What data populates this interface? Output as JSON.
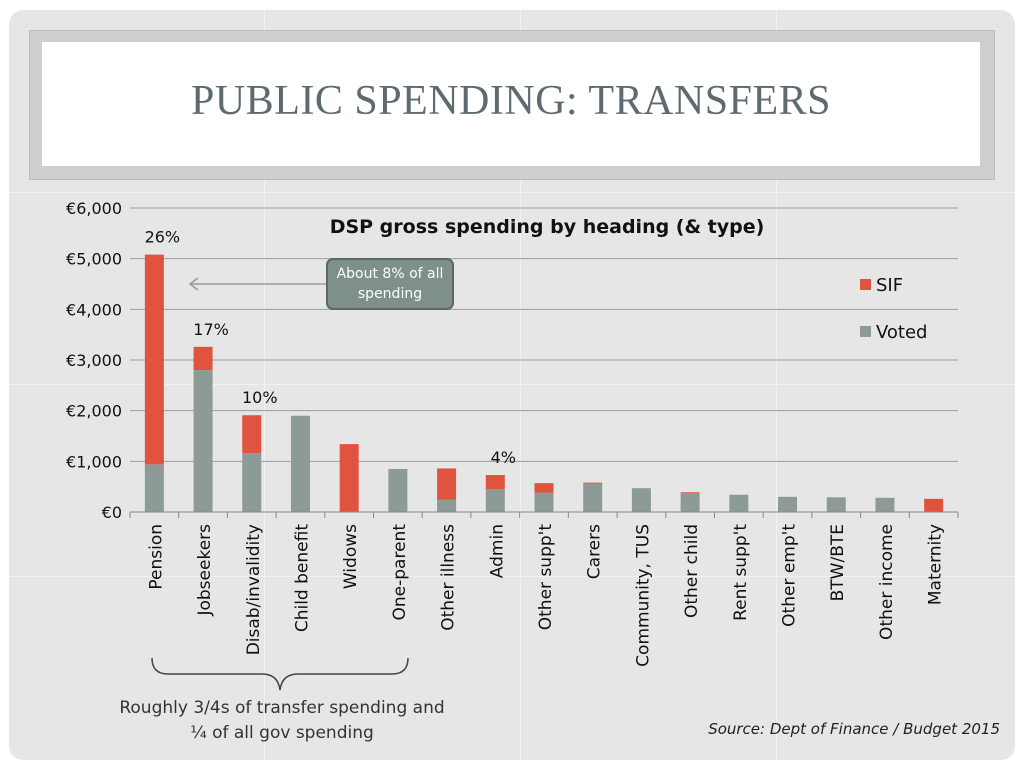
{
  "slide": {
    "title": "PUBLIC SPENDING: TRANSFERS",
    "callout": "About 8% of all spending",
    "footnote_line1": "Roughly 3/4s of transfer spending and",
    "footnote_line2": "¼ of all gov spending",
    "source": "Source: Dept of Finance / Budget 2015"
  },
  "chart_data": {
    "type": "bar",
    "stacked": true,
    "title": "DSP gross spending by heading (& type)",
    "xlabel": "",
    "ylabel": "",
    "ylim": [
      0,
      6000
    ],
    "yticks": [
      0,
      1000,
      2000,
      3000,
      4000,
      5000,
      6000
    ],
    "ytick_labels": [
      "€0",
      "€1,000",
      "€2,000",
      "€3,000",
      "€4,000",
      "€5,000",
      "€6,000"
    ],
    "grid": true,
    "legend_position": "right",
    "categories": [
      "Pension",
      "Jobseekers",
      "Disab/invalidity",
      "Child benefit",
      "Widows",
      "One-parent",
      "Other illness",
      "Admin",
      "Other supp't",
      "Carers",
      "Community, TUS",
      "Other child",
      "Rent supp't",
      "Other emp't",
      "BTW/BTE",
      "Other income",
      "Maternity"
    ],
    "series": [
      {
        "name": "Voted",
        "color": "#8c9b97",
        "values": [
          940,
          2800,
          1160,
          1900,
          0,
          850,
          240,
          450,
          380,
          560,
          470,
          370,
          340,
          300,
          290,
          280,
          0
        ]
      },
      {
        "name": "SIF",
        "color": "#e0533e",
        "values": [
          4140,
          460,
          750,
          0,
          1340,
          0,
          620,
          280,
          190,
          20,
          0,
          20,
          0,
          0,
          0,
          0,
          260
        ]
      }
    ],
    "annotations": [
      {
        "category": "Pension",
        "text": "26%"
      },
      {
        "category": "Jobseekers",
        "text": "17%"
      },
      {
        "category": "Disab/invalidity",
        "text": "10%"
      },
      {
        "category": "Admin",
        "text": "4%"
      }
    ]
  }
}
